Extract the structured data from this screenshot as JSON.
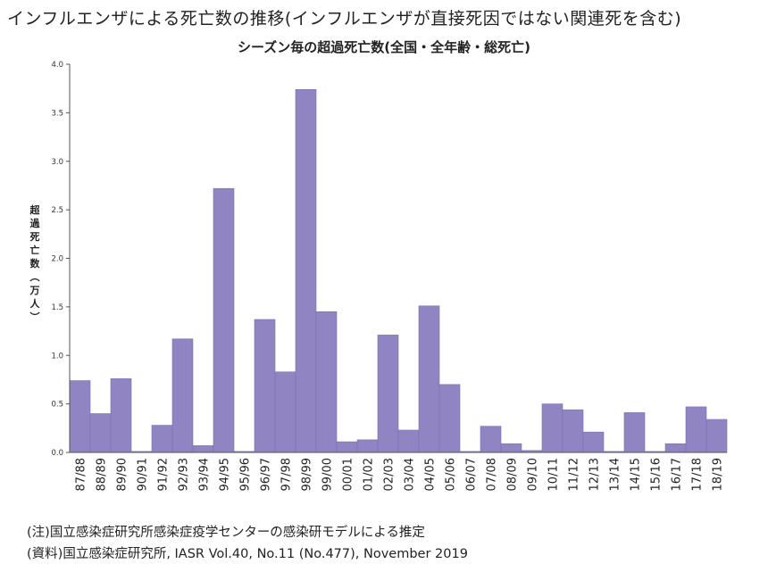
{
  "main_title": "インフルエンザによる死亡数の推移(インフルエンザが直接死因ではない関連死を含む)",
  "notes": {
    "note": "(注)国立感染症研究所感染症疫学センターの感染研モデルによる推定",
    "source": "(資料)国立感染症研究所, IASR Vol.40, No.11 (No.477), November 2019"
  },
  "colors": {
    "bar": "#9184c2",
    "bar_edge": "#7e70b2",
    "axis": "#555555"
  },
  "chart_data": {
    "type": "bar",
    "title": "シーズン毎の超過死亡数(全国・全年齢・総死亡)",
    "xlabel": "",
    "ylabel": "超過死亡数(万人)",
    "ylim": [
      0,
      4.0
    ],
    "yticks": [
      "0.0",
      "0.5",
      "1.0",
      "1.5",
      "2.0",
      "2.5",
      "3.0",
      "3.5",
      "4.0"
    ],
    "grid": false,
    "categories": [
      "87/88",
      "88/89",
      "89/90",
      "90/91",
      "91/92",
      "92/93",
      "93/94",
      "94/95",
      "95/96",
      "96/97",
      "97/98",
      "98/99",
      "99/00",
      "00/01",
      "01/02",
      "02/03",
      "03/04",
      "04/05",
      "05/06",
      "06/07",
      "07/08",
      "08/09",
      "09/10",
      "10/11",
      "11/12",
      "12/13",
      "13/14",
      "14/15",
      "15/16",
      "16/17",
      "17/18",
      "18/19"
    ],
    "values": [
      0.74,
      0.4,
      0.76,
      0.01,
      0.28,
      1.17,
      0.07,
      2.72,
      0.01,
      1.37,
      0.83,
      3.74,
      1.45,
      0.11,
      0.13,
      1.21,
      0.23,
      1.51,
      0.7,
      0.01,
      0.27,
      0.09,
      0.02,
      0.5,
      0.44,
      0.21,
      0.01,
      0.41,
      0.01,
      0.09,
      0.47,
      0.34
    ]
  }
}
